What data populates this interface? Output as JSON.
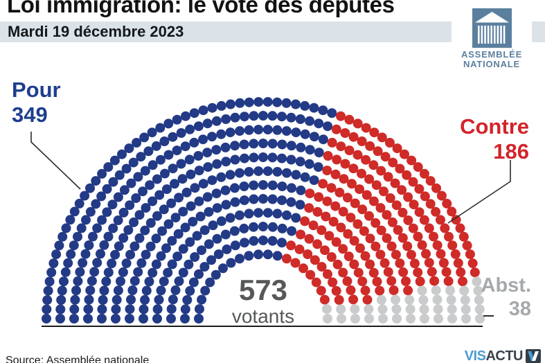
{
  "header": {
    "title": "Loi immigration: le vote des députés",
    "date": "Mardi 19 décembre 2023"
  },
  "logo": {
    "name": "Assemblée nationale",
    "line1": "ASSEMBLÉE",
    "line2": "NATIONALE",
    "color": "#5b7f9e"
  },
  "chart_data": {
    "type": "parliament",
    "title": "Loi immigration: le vote des députés",
    "date": "Mardi 19 décembre 2023",
    "total": 573,
    "total_label": "573",
    "total_unit": "votants",
    "rows": 12,
    "series": [
      {
        "name": "Pour",
        "value": 349,
        "color": "#233a86",
        "label_color": "#1e3e8e"
      },
      {
        "name": "Contre",
        "value": 186,
        "color": "#cf2b28",
        "label_color": "#d2232a"
      },
      {
        "name": "Abst.",
        "value": 38,
        "color": "#c9cbcd",
        "label_color": "#a5a9ac"
      }
    ]
  },
  "footer": {
    "source": "Source: Assemblée nationale",
    "credit_vis": "VIS",
    "credit_actu": "ACTU"
  }
}
